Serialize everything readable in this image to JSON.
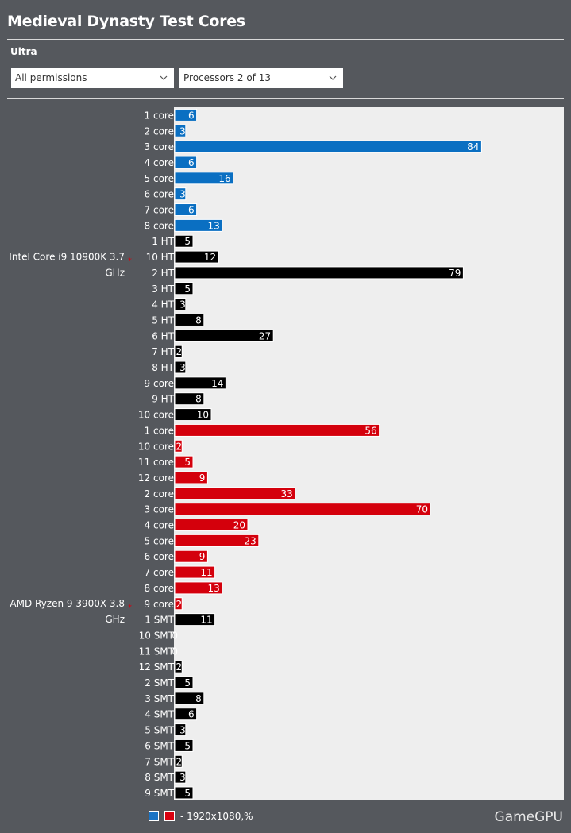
{
  "header": {
    "title": "Medieval Dynasty Test Cores",
    "subtitle": "Ultra"
  },
  "filters": {
    "permissions": "All permissions",
    "processors": "Processors 2 of 13"
  },
  "legend": {
    "text": "- 1920x1080,%",
    "colors": [
      "#1a73c4",
      "#d8000f"
    ]
  },
  "brand": "GameGPU",
  "colors": {
    "blue": "#0a6fc2",
    "black": "#000000",
    "red": "#d4000c",
    "background": "#55585d",
    "plot": "#eeeeee"
  },
  "chart_data": {
    "type": "bar",
    "orientation": "horizontal",
    "title": "Medieval Dynasty Test Cores",
    "groups": [
      {
        "name": "Intel Core i9 10900K 3.7 GHz",
        "bars": [
          {
            "label": "1 core",
            "value": 6,
            "color": "blue"
          },
          {
            "label": "2 core",
            "value": 3,
            "color": "blue"
          },
          {
            "label": "3 core",
            "value": 84,
            "color": "blue"
          },
          {
            "label": "4 core",
            "value": 6,
            "color": "blue"
          },
          {
            "label": "5 core",
            "value": 16,
            "color": "blue"
          },
          {
            "label": "6 core",
            "value": 3,
            "color": "blue"
          },
          {
            "label": "7 core",
            "value": 6,
            "color": "blue"
          },
          {
            "label": "8 core",
            "value": 13,
            "color": "blue"
          },
          {
            "label": "1 HT",
            "value": 5,
            "color": "black"
          },
          {
            "label": "10 HT",
            "value": 12,
            "color": "black"
          },
          {
            "label": "2 HT",
            "value": 79,
            "color": "black"
          },
          {
            "label": "3 HT",
            "value": 5,
            "color": "black"
          },
          {
            "label": "4 HT",
            "value": 3,
            "color": "black"
          },
          {
            "label": "5 HT",
            "value": 8,
            "color": "black"
          },
          {
            "label": "6 HT",
            "value": 27,
            "color": "black"
          },
          {
            "label": "7 HT",
            "value": 2,
            "color": "black"
          },
          {
            "label": "8 HT",
            "value": 3,
            "color": "black"
          },
          {
            "label": "9 core",
            "value": 14,
            "color": "black"
          },
          {
            "label": "9 HT",
            "value": 8,
            "color": "black"
          },
          {
            "label": "10 core",
            "value": 10,
            "color": "black"
          }
        ]
      },
      {
        "name": "AMD Ryzen 9 3900X 3.8 GHz",
        "bars": [
          {
            "label": "1 core",
            "value": 56,
            "color": "red"
          },
          {
            "label": "10 core",
            "value": 2,
            "color": "red"
          },
          {
            "label": "11 core",
            "value": 5,
            "color": "red"
          },
          {
            "label": "12 core",
            "value": 9,
            "color": "red"
          },
          {
            "label": "2 core",
            "value": 33,
            "color": "red"
          },
          {
            "label": "3 core",
            "value": 70,
            "color": "red"
          },
          {
            "label": "4 core",
            "value": 20,
            "color": "red"
          },
          {
            "label": "5 core",
            "value": 23,
            "color": "red"
          },
          {
            "label": "6 core",
            "value": 9,
            "color": "red"
          },
          {
            "label": "7 core",
            "value": 11,
            "color": "red"
          },
          {
            "label": "8 core",
            "value": 13,
            "color": "red"
          },
          {
            "label": "9 core",
            "value": 2,
            "color": "red"
          },
          {
            "label": "1 SMT",
            "value": 11,
            "color": "black"
          },
          {
            "label": "10 SMT",
            "value": 0,
            "color": "black"
          },
          {
            "label": "11 SMT",
            "value": 0,
            "color": "black"
          },
          {
            "label": "12 SMT",
            "value": 2,
            "color": "black"
          },
          {
            "label": "2 SMT",
            "value": 5,
            "color": "black"
          },
          {
            "label": "3 SMT",
            "value": 8,
            "color": "black"
          },
          {
            "label": "4 SMT",
            "value": 6,
            "color": "black"
          },
          {
            "label": "5 SMT",
            "value": 3,
            "color": "black"
          },
          {
            "label": "6 SMT",
            "value": 5,
            "color": "black"
          },
          {
            "label": "7 SMT",
            "value": 2,
            "color": "black"
          },
          {
            "label": "8 SMT",
            "value": 3,
            "color": "black"
          },
          {
            "label": "9 SMT",
            "value": 5,
            "color": "black"
          }
        ]
      }
    ],
    "xlim": [
      0,
      100
    ],
    "grid": false,
    "legend_position": "bottom-left"
  }
}
